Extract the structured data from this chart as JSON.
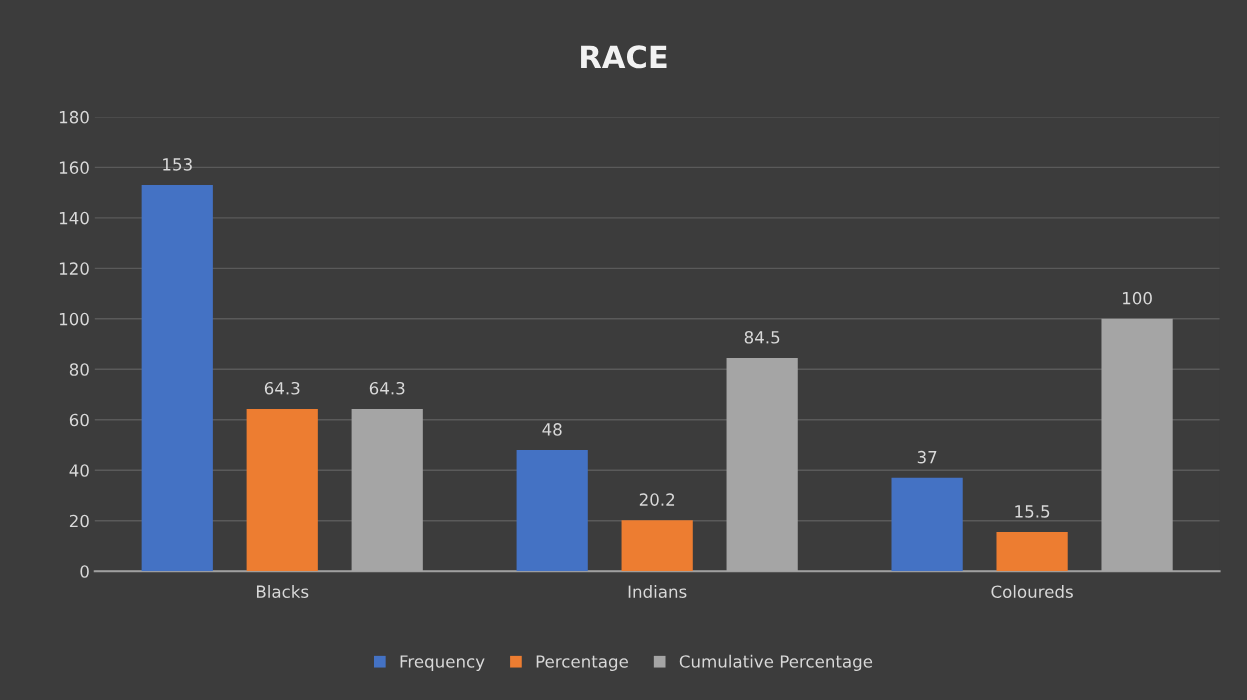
{
  "chart_data": {
    "type": "bar",
    "title": "RACE",
    "categories": [
      "Blacks",
      "Indians",
      "Coloureds"
    ],
    "series": [
      {
        "name": "Frequency",
        "color": "#4472c4",
        "values": [
          153,
          48,
          37
        ]
      },
      {
        "name": "Percentage",
        "color": "#ed7d31",
        "values": [
          64.3,
          20.2,
          15.5
        ]
      },
      {
        "name": "Cumulative Percentage",
        "color": "#a5a5a5",
        "values": [
          64.3,
          84.5,
          100
        ]
      }
    ],
    "ylim": [
      0,
      180
    ],
    "yticks": [
      0,
      20,
      40,
      60,
      80,
      100,
      120,
      140,
      160,
      180
    ],
    "grid": "y",
    "legend": "bottom",
    "data_labels": true
  }
}
